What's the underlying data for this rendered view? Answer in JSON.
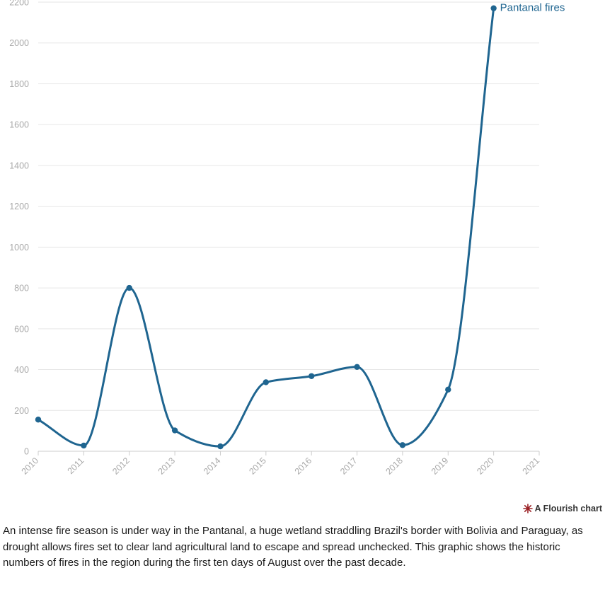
{
  "chart_data": {
    "type": "line",
    "title": "",
    "xlabel": "",
    "ylabel": "",
    "x": [
      "2010",
      "2011",
      "2012",
      "2013",
      "2014",
      "2015",
      "2016",
      "2017",
      "2018",
      "2019",
      "2020"
    ],
    "x_ticks": [
      "2010",
      "2011",
      "2012",
      "2013",
      "2014",
      "2015",
      "2016",
      "2017",
      "2018",
      "2019",
      "2020",
      "2021"
    ],
    "y_ticks": [
      "0",
      "200",
      "400",
      "600",
      "800",
      "1000",
      "1200",
      "1400",
      "1600",
      "1800",
      "2000",
      "2200"
    ],
    "ylim": [
      0,
      2200
    ],
    "grid": true,
    "line_style": "smooth",
    "series": [
      {
        "name": "Pantanal fires",
        "color": "#1f6590",
        "values": [
          155,
          28,
          800,
          102,
          24,
          338,
          368,
          413,
          30,
          302,
          2170
        ]
      }
    ]
  },
  "credit": {
    "text": "A Flourish chart",
    "icon": "flourish-logo-icon",
    "icon_color": "#9b2226"
  },
  "caption": "An intense fire season is under way in the Pantanal, a huge wetland straddling Brazil's border with Bolivia and Paraguay, as drought allows fires set to clear land agricultural land to escape and spread unchecked. This graphic shows the historic numbers of fires in the region during the first ten days of August over the past decade."
}
